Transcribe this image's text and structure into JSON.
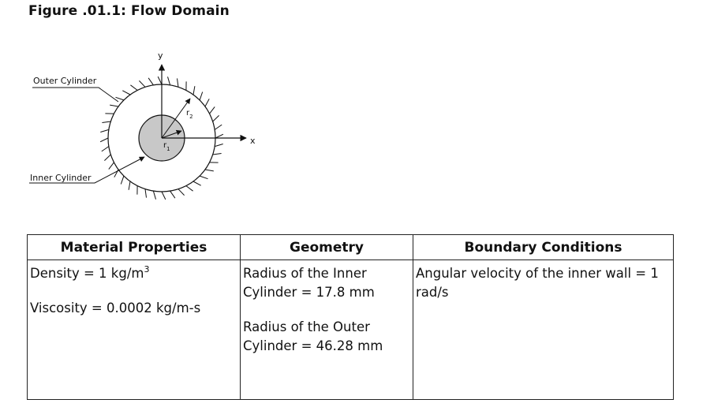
{
  "figure": {
    "title": "Figure .01.1: Flow Domain",
    "labels": {
      "outer_cylinder": "Outer Cylinder",
      "inner_cylinder": "Inner Cylinder",
      "y_axis": "y",
      "x_axis": "x",
      "r1": "r",
      "r1_sub": "1",
      "r2": "r",
      "r2_sub": "2"
    }
  },
  "table": {
    "headers": {
      "material": "Material Properties",
      "geometry": "Geometry",
      "boundary": "Boundary Conditions"
    },
    "material": {
      "density_prefix": "Density = 1 kg/m",
      "density_exp": "3",
      "viscosity": "Viscosity = 0.0002 kg/m-s"
    },
    "geometry": {
      "inner_radius": "Radius of the Inner Cylinder = 17.8 mm",
      "outer_radius": "Radius of the Outer Cylinder = 46.28 mm"
    },
    "boundary": {
      "angular_velocity": "Angular velocity of the inner wall = 1 rad/s"
    }
  },
  "colors": {
    "inner_cylinder_fill": "#c8c8c8",
    "line": "#111111"
  }
}
